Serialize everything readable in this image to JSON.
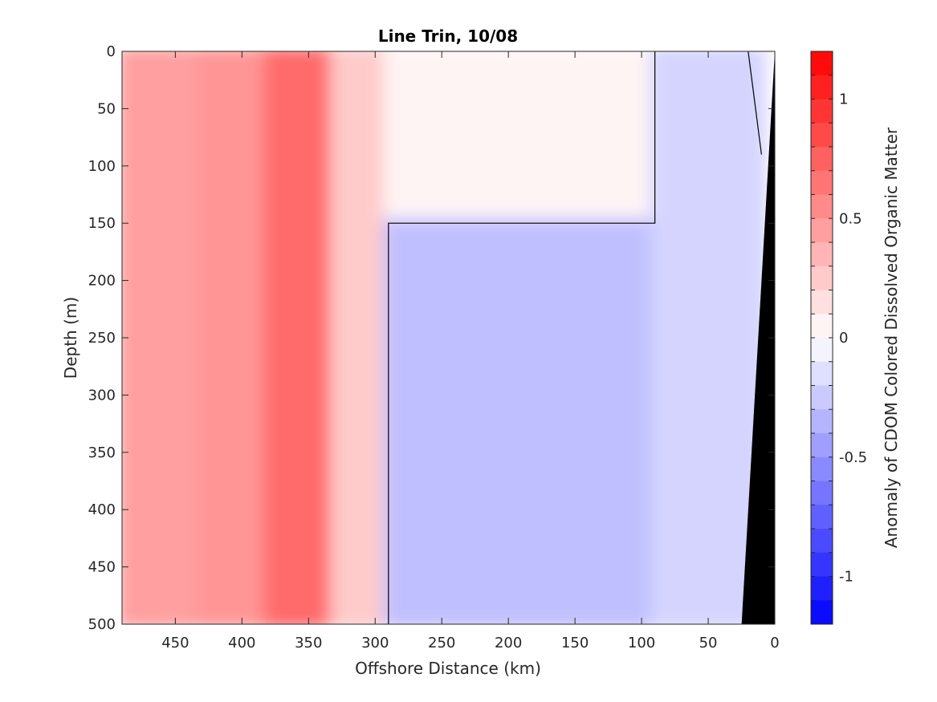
{
  "chart_data": {
    "type": "heatmap",
    "title": "Line Trin, 10/08",
    "xlabel": "Offshore Distance (km)",
    "ylabel": "Depth (m)",
    "xlim": [
      490,
      0
    ],
    "ylim": [
      0,
      500
    ],
    "x_reversed": true,
    "y_reversed": true,
    "x_ticks": [
      450,
      400,
      350,
      300,
      250,
      200,
      150,
      100,
      50,
      0
    ],
    "y_ticks": [
      0,
      50,
      100,
      150,
      200,
      250,
      300,
      350,
      400,
      450,
      500
    ],
    "grid": false,
    "colorbar": {
      "label": "Anomaly of CDOM Colored Dissolved Organic Matter",
      "range": [
        -1.2,
        1.2
      ],
      "ticks": [
        -1,
        -0.5,
        0,
        0.5,
        1
      ],
      "tick_labels": [
        "-1",
        "-0.5",
        "0",
        "0.5",
        "1"
      ],
      "levels": 24,
      "colormap": "blue-white-red",
      "low_color": "#0000ff",
      "mid_color": "#ffffff",
      "high_color": "#ff0000"
    },
    "zero_contour_color": "#000000",
    "bathymetry_color": "#000000",
    "regions": [
      {
        "x_range": [
          490,
          430
        ],
        "depth_range": [
          0,
          500
        ],
        "approx_anomaly": 0.45
      },
      {
        "x_range": [
          430,
          380
        ],
        "depth_range": [
          0,
          500
        ],
        "approx_anomaly": 0.5
      },
      {
        "x_range": [
          380,
          330
        ],
        "depth_range": [
          0,
          500
        ],
        "approx_anomaly": 0.7
      },
      {
        "x_range": [
          330,
          290
        ],
        "depth_range": [
          0,
          500
        ],
        "approx_anomaly": 0.25
      },
      {
        "x_range": [
          290,
          90
        ],
        "depth_range": [
          0,
          150
        ],
        "approx_anomaly": 0.05
      },
      {
        "x_range": [
          290,
          90
        ],
        "depth_range": [
          150,
          500
        ],
        "approx_anomaly": -0.3
      },
      {
        "x_range": [
          90,
          10
        ],
        "depth_range": [
          0,
          500
        ],
        "approx_anomaly": -0.2
      }
    ]
  }
}
